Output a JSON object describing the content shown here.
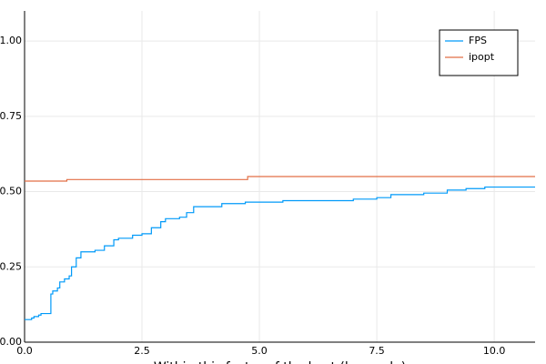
{
  "chart_data": {
    "type": "line",
    "step": "post",
    "xlabel": "Within this factor of the best (log scale)",
    "xlim": [
      0,
      10.87
    ],
    "ylim": [
      0,
      1.1
    ],
    "xticks": [
      {
        "value": 0,
        "label": "0.0"
      },
      2.5,
      {
        "value": 5,
        "label": "5.0"
      },
      7.5,
      {
        "value": 10,
        "label": "10.0"
      }
    ],
    "yticks": [
      {
        "value": 0,
        "label": "0.00"
      },
      0.25,
      {
        "value": 0.5,
        "label": "0.50"
      },
      0.75,
      {
        "value": 1,
        "label": "1.00"
      }
    ],
    "grid": true,
    "legend": "top-right",
    "series": [
      {
        "name": "FPS",
        "color": "#009af9",
        "x": [
          0,
          0.15,
          0.2,
          0.3,
          0.35,
          0.56,
          0.6,
          0.7,
          0.75,
          0.85,
          0.95,
          1.0,
          1.1,
          1.2,
          1.5,
          1.7,
          1.9,
          2.0,
          2.3,
          2.5,
          2.7,
          2.9,
          3.0,
          3.3,
          3.45,
          3.6,
          4.2,
          4.7,
          5.5,
          7.0,
          7.5,
          7.8,
          8.5,
          9.0,
          9.4,
          9.8,
          10.87
        ],
        "values": [
          0.075,
          0.08,
          0.085,
          0.09,
          0.095,
          0.16,
          0.17,
          0.18,
          0.2,
          0.21,
          0.22,
          0.25,
          0.28,
          0.3,
          0.305,
          0.32,
          0.34,
          0.345,
          0.355,
          0.36,
          0.38,
          0.4,
          0.41,
          0.415,
          0.43,
          0.45,
          0.46,
          0.465,
          0.47,
          0.475,
          0.48,
          0.49,
          0.495,
          0.505,
          0.51,
          0.515,
          0.515
        ]
      },
      {
        "name": "ipopt",
        "color": "#e26f46",
        "x": [
          0,
          0.9,
          4.75,
          10.87
        ],
        "values": [
          0.535,
          0.54,
          0.55,
          0.55
        ]
      }
    ]
  }
}
